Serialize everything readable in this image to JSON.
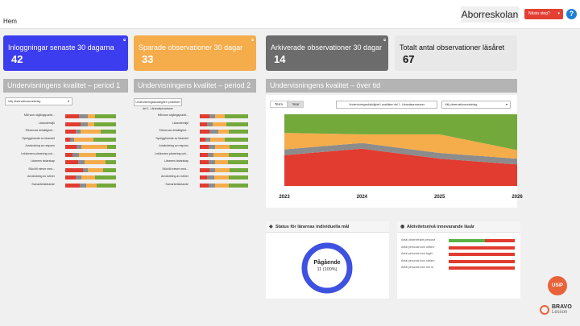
{
  "header": {
    "home": "Hem",
    "school": "Aborreskolan",
    "next_step": "Nästa steg?",
    "help": "?"
  },
  "cards": [
    {
      "label": "Inloggningar senaste 30 dagarna",
      "value": "42",
      "bg": "#3d3df0",
      "fg": "#ffffff"
    },
    {
      "label": "Sparade observationer 30 dagar",
      "value": "33",
      "bg": "#f5ac4a",
      "fg": "#ffffff"
    },
    {
      "label": "Arkiverade observationer 30 dagar",
      "value": "14",
      "bg": "#6c6c6c",
      "fg": "#ffffff"
    },
    {
      "label": "Totalt antal observationer läsåret",
      "value": "67",
      "bg": "#e8e8e8",
      "fg": "#111111"
    }
  ],
  "period1": {
    "title": "Undervisningens kvalitet – period 1",
    "select": "Välj observationsunderlag"
  },
  "period2": {
    "title": "Undervisningens kvalitet – period 2",
    "select": "Undervisningsskicklighet i praktiken del 1. Lärandeprocesser"
  },
  "rows": {
    "labels": [
      "Mål som utgångspunkt...",
      "Lärandemiljö",
      "Elevernas delaktighet...",
      "Synliggörande av lärandet",
      "Användning av respons",
      "Lektionens planering och...",
      "Lärarens ledarskap",
      "Stöd till elever med...",
      "Användning av rutiner",
      "Samarbetslärande"
    ],
    "p1": [
      [
        0.27,
        0.18,
        0.13,
        0.42
      ],
      [
        0.3,
        0.15,
        0.12,
        0.43
      ],
      [
        0.2,
        0.1,
        0.4,
        0.3
      ],
      [
        0.1,
        0.08,
        0.37,
        0.45
      ],
      [
        0.22,
        0.1,
        0.5,
        0.18
      ],
      [
        0.15,
        0.12,
        0.33,
        0.4
      ],
      [
        0.25,
        0.13,
        0.42,
        0.2
      ],
      [
        0.35,
        0.1,
        0.3,
        0.25
      ],
      [
        0.2,
        0.12,
        0.26,
        0.42
      ],
      [
        0.28,
        0.14,
        0.2,
        0.38
      ]
    ],
    "p2": [
      [
        0.2,
        0.12,
        0.2,
        0.48
      ],
      [
        0.15,
        0.12,
        0.28,
        0.45
      ],
      [
        0.2,
        0.18,
        0.22,
        0.4
      ],
      [
        0.12,
        0.1,
        0.3,
        0.48
      ],
      [
        0.18,
        0.14,
        0.3,
        0.38
      ],
      [
        0.16,
        0.12,
        0.32,
        0.4
      ],
      [
        0.18,
        0.14,
        0.26,
        0.42
      ],
      [
        0.2,
        0.12,
        0.3,
        0.38
      ],
      [
        0.15,
        0.15,
        0.3,
        0.4
      ],
      [
        0.18,
        0.14,
        0.28,
        0.4
      ]
    ],
    "colors": [
      "#e23b30",
      "#8c8c8c",
      "#f5ac4a",
      "#73a83a"
    ]
  },
  "overtime": {
    "title": "Undervisningens kvalitet – över tid",
    "btn_term": "Term",
    "btn_year": "Year",
    "select1": "Undervisningsskicklighet i praktiken del 1. Lärandeprocesser",
    "select2": "Välj observationsunderlag"
  },
  "chart_data": {
    "type": "area",
    "x": [
      "2023",
      "2024",
      "2025",
      "2026"
    ],
    "stacked": true,
    "series": [
      {
        "color": "#e23b30",
        "values": [
          43,
          52,
          38,
          30
        ]
      },
      {
        "color": "#8c8c8c",
        "values": [
          8,
          8,
          8,
          8
        ]
      },
      {
        "color": "#f5ac4a",
        "values": [
          23,
          12,
          26,
          12
        ]
      },
      {
        "color": "#73a83a",
        "values": [
          26,
          28,
          28,
          50
        ]
      }
    ],
    "ylim": [
      0,
      100
    ]
  },
  "goals": {
    "title": "Status för lärarnas individuella mål",
    "status": "Pågående",
    "detail": "11 (100%)",
    "progress": 1.0
  },
  "activity": {
    "title": "Aktivitetsnivå innevarande läsår",
    "rows": [
      {
        "label": "Antal observerade persona",
        "green": 0.55,
        "red": 0.45
      },
      {
        "label": "Antal personal som observ",
        "green": 0.0,
        "red": 1.0
      },
      {
        "label": "Antal personal som tagit t",
        "green": 0.0,
        "red": 1.0
      },
      {
        "label": "Antal personal som observ",
        "green": 0.0,
        "red": 1.0
      },
      {
        "label": "Antal personal som har la",
        "green": 0.0,
        "red": 1.0
      }
    ]
  },
  "brand": {
    "usip": "USiP",
    "bravo": "BRAVO",
    "lesson": "Lesson"
  }
}
